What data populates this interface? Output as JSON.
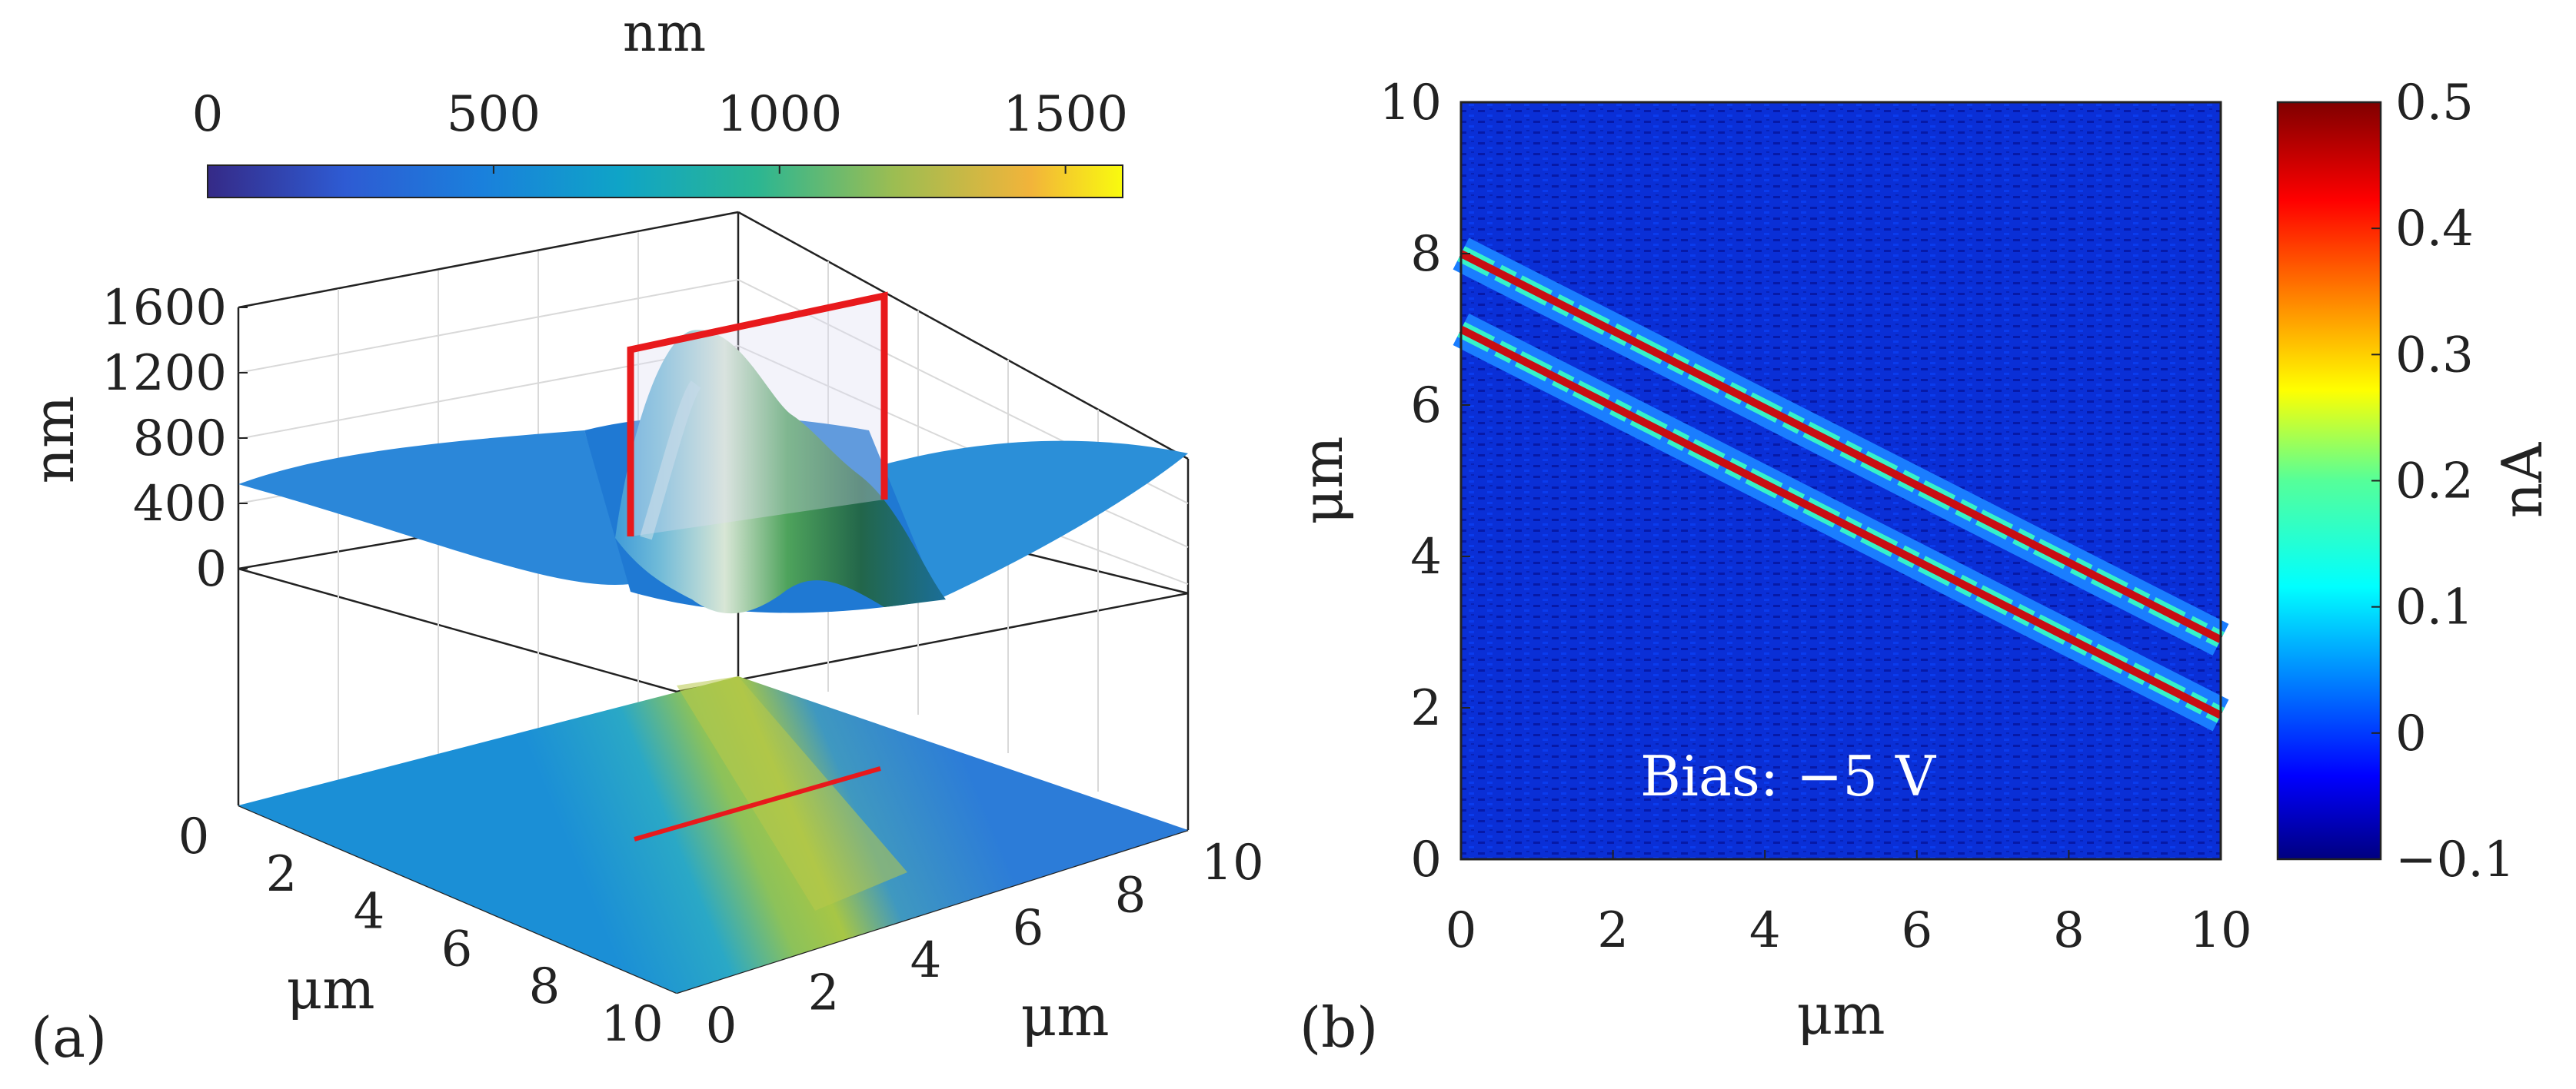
{
  "panel_a": {
    "label": "(a)",
    "colorbar": {
      "title": "nm",
      "ticks": [
        "0",
        "500",
        "1000",
        "1500"
      ],
      "tick_values": [
        0,
        500,
        1000,
        1500
      ],
      "range": [
        0,
        1600
      ]
    },
    "z_axis": {
      "label": "nm",
      "ticks": [
        "0",
        "400",
        "800",
        "1200",
        "1600"
      ],
      "tick_values": [
        0,
        400,
        800,
        1200,
        1600
      ]
    },
    "y_axis": {
      "label": "μm",
      "ticks": [
        "0",
        "2",
        "4",
        "6",
        "8",
        "10"
      ],
      "tick_values": [
        0,
        2,
        4,
        6,
        8,
        10
      ]
    },
    "x_axis": {
      "label": "μm",
      "ticks": [
        "0",
        "2",
        "4",
        "6",
        "8",
        "10"
      ],
      "tick_values": [
        0,
        2,
        4,
        6,
        8,
        10
      ]
    },
    "ridge": {
      "peak_height_nm": 1550,
      "baseline_nm": 500,
      "range_um": [
        0,
        10
      ]
    },
    "highlight_color": "#e8191c"
  },
  "panel_b": {
    "label": "(b)",
    "annotation": "Bias: −5 V",
    "x_axis": {
      "label": "μm",
      "ticks": [
        "0",
        "2",
        "4",
        "6",
        "8",
        "10"
      ],
      "tick_values": [
        0,
        2,
        4,
        6,
        8,
        10
      ],
      "range": [
        0,
        10
      ]
    },
    "y_axis": {
      "label": "μm",
      "ticks": [
        "0",
        "2",
        "4",
        "6",
        "8",
        "10"
      ],
      "tick_values": [
        0,
        2,
        4,
        6,
        8,
        10
      ],
      "range": [
        0,
        10
      ]
    },
    "colorbar": {
      "label": "nA",
      "ticks": [
        "0.5",
        "0.4",
        "0.3",
        "0.2",
        "0.1",
        "0",
        "−0.1"
      ],
      "tick_values": [
        0.5,
        0.4,
        0.3,
        0.2,
        0.1,
        0,
        -0.1
      ],
      "range": [
        -0.1,
        0.5
      ]
    },
    "background_color": "#0a2fd6"
  },
  "chart_data": [
    {
      "type": "surface3d",
      "title": "",
      "zlabel": "nm",
      "xlabel": "μm",
      "ylabel": "μm",
      "zlim": [
        0,
        1600
      ],
      "xlim": [
        0,
        10
      ],
      "ylim": [
        0,
        10
      ],
      "colorbar_label": "nm",
      "colorbar_range": [
        0,
        1600
      ],
      "description_values": {
        "baseline_height_nm": 500,
        "ridge_peak_nm": 1550
      }
    },
    {
      "type": "heatmap",
      "title": "",
      "xlabel": "μm",
      "ylabel": "μm",
      "xlim": [
        0,
        10
      ],
      "ylim": [
        0,
        10
      ],
      "colorbar_label": "nA",
      "colorbar_range": [
        -0.1,
        0.5
      ],
      "annotation": "Bias: −5 V",
      "conductive_stripes": [
        {
          "name": "upper",
          "x": [
            0,
            10
          ],
          "y": [
            8.0,
            2.9
          ],
          "current_nA": 0.45
        },
        {
          "name": "lower",
          "x": [
            0,
            10
          ],
          "y": [
            7.0,
            1.9
          ],
          "current_nA": 0.45
        }
      ]
    }
  ]
}
